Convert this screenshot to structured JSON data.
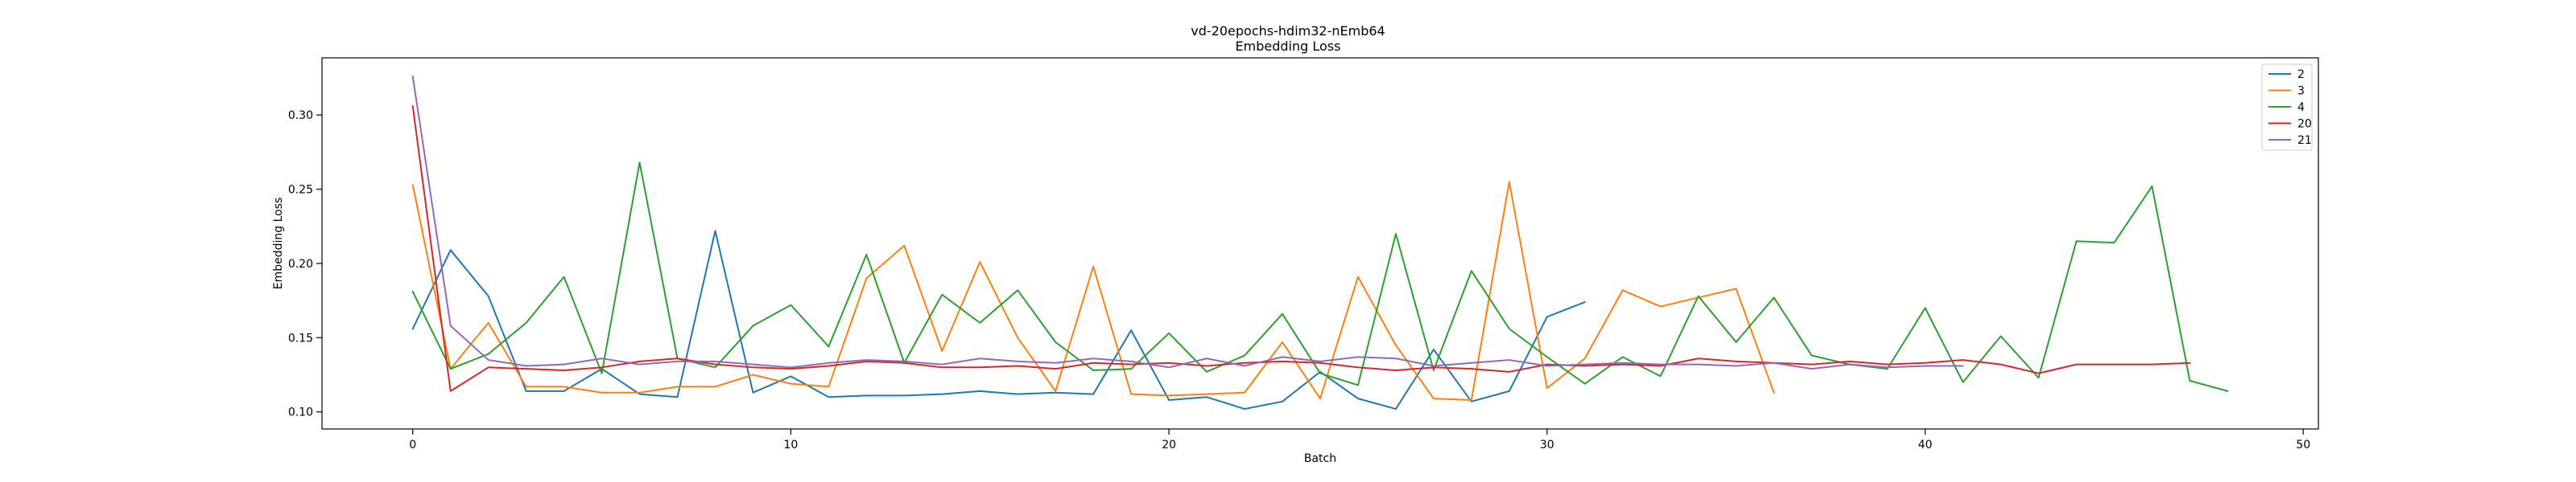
{
  "chart_data": {
    "type": "line",
    "title": "vd-20epochs-hdim32-nEmb64",
    "subtitle": "Embedding Loss",
    "xlabel": "Batch",
    "ylabel": "Embedding Loss",
    "xlim": [
      -2.4,
      50.4
    ],
    "ylim": [
      0.0885,
      0.3385
    ],
    "xticks": [
      0,
      10,
      20,
      30,
      40,
      50
    ],
    "yticks": [
      0.1,
      0.15,
      0.2,
      0.25,
      0.3
    ],
    "xtick_labels": [
      "0",
      "10",
      "20",
      "30",
      "40",
      "50"
    ],
    "ytick_labels": [
      "0.10",
      "0.15",
      "0.20",
      "0.25",
      "0.30"
    ],
    "grid": false,
    "legend_position": "top-right",
    "series": [
      {
        "name": "2",
        "color": "#1f77b4",
        "values": [
          0.156,
          0.209,
          0.178,
          0.114,
          0.114,
          0.129,
          0.112,
          0.11,
          0.222,
          0.113,
          0.124,
          0.11,
          0.111,
          0.111,
          0.112,
          0.114,
          0.112,
          0.113,
          0.112,
          0.155,
          0.108,
          0.11,
          0.102,
          0.107,
          0.127,
          0.109,
          0.102,
          0.142,
          0.107,
          0.114,
          0.164,
          0.174
        ]
      },
      {
        "name": "3",
        "color": "#ff7f0e",
        "values": [
          0.253,
          0.129,
          0.16,
          0.117,
          0.117,
          0.113,
          0.113,
          0.117,
          0.117,
          0.125,
          0.119,
          0.117,
          0.19,
          0.212,
          0.141,
          0.201,
          0.15,
          0.114,
          0.198,
          0.112,
          0.111,
          0.112,
          0.113,
          0.147,
          0.109,
          0.191,
          0.145,
          0.109,
          0.108,
          0.255,
          0.116,
          0.136,
          0.182,
          0.171,
          0.177,
          0.183,
          0.113
        ]
      },
      {
        "name": "4",
        "color": "#2ca02c",
        "values": [
          0.181,
          0.129,
          0.139,
          0.16,
          0.191,
          0.126,
          0.268,
          0.136,
          0.13,
          0.158,
          0.172,
          0.144,
          0.206,
          0.133,
          0.179,
          0.16,
          0.182,
          0.147,
          0.128,
          0.129,
          0.153,
          0.127,
          0.138,
          0.166,
          0.126,
          0.118,
          0.22,
          0.128,
          0.195,
          0.156,
          0.137,
          0.119,
          0.137,
          0.124,
          0.178,
          0.147,
          0.177,
          0.138,
          0.132,
          0.129,
          0.17,
          0.12,
          0.151,
          0.123,
          0.215,
          0.214,
          0.252,
          0.121,
          0.114
        ]
      },
      {
        "name": "20",
        "color": "#d62728",
        "values": [
          0.306,
          0.114,
          0.13,
          0.129,
          0.128,
          0.13,
          0.134,
          0.136,
          0.132,
          0.13,
          0.129,
          0.131,
          0.134,
          0.133,
          0.13,
          0.13,
          0.131,
          0.129,
          0.133,
          0.132,
          0.133,
          0.131,
          0.133,
          0.134,
          0.133,
          0.13,
          0.128,
          0.13,
          0.129,
          0.127,
          0.132,
          0.131,
          0.132,
          0.131,
          0.136,
          0.134,
          0.133,
          0.132,
          0.134,
          0.132,
          0.133,
          0.135,
          0.132,
          0.126,
          0.132,
          0.132,
          0.132,
          0.133
        ]
      },
      {
        "name": "21",
        "color": "#9467bd",
        "values": [
          0.326,
          0.158,
          0.135,
          0.131,
          0.132,
          0.136,
          0.132,
          0.134,
          0.134,
          0.132,
          0.13,
          0.133,
          0.135,
          0.134,
          0.132,
          0.136,
          0.134,
          0.133,
          0.136,
          0.134,
          0.13,
          0.136,
          0.131,
          0.137,
          0.134,
          0.137,
          0.136,
          0.131,
          0.133,
          0.135,
          0.131,
          0.132,
          0.133,
          0.132,
          0.132,
          0.131,
          0.133,
          0.129,
          0.132,
          0.13,
          0.131,
          0.131
        ]
      }
    ]
  }
}
